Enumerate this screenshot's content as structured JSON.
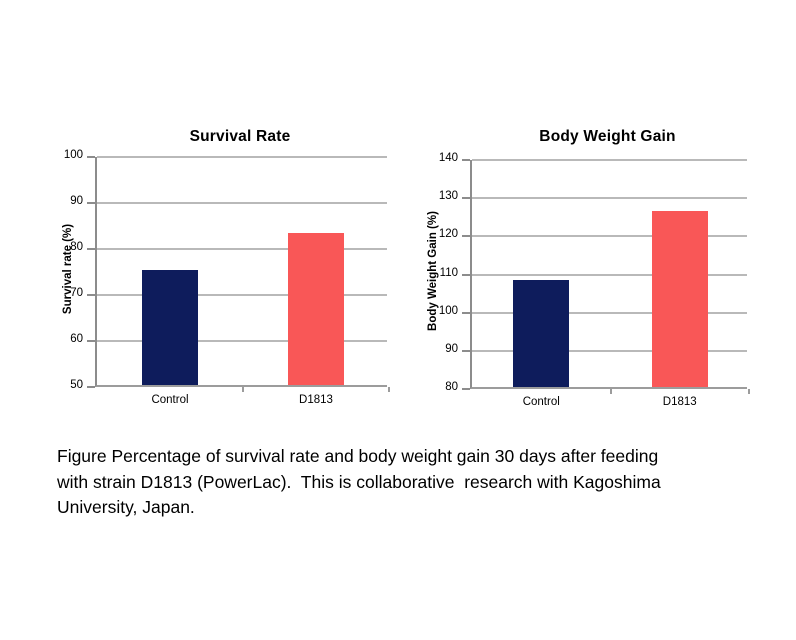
{
  "figure": {
    "caption_lines": [
      "Figure Percentage of survival rate and body weight gain 30 days after feeding",
      "with strain D1813 (PowerLac).  This is collaborative  research with Kagoshima",
      "University, Japan."
    ]
  },
  "colors": {
    "control_bar": "#0e1c5c",
    "d1813_bar": "#f95757",
    "gridline": "#b9b9b9",
    "axis": "#8c8c8c"
  },
  "chart_data": [
    {
      "type": "bar",
      "title": "Survival Rate",
      "ylabel": "Survival rate (%)",
      "xlabel": "",
      "categories": [
        "Control",
        "D1813"
      ],
      "values": [
        75,
        83
      ],
      "bar_colors": [
        "#0e1c5c",
        "#f95757"
      ],
      "ylim": [
        50,
        100
      ],
      "yticks": [
        50,
        60,
        70,
        80,
        90,
        100
      ],
      "grid": true,
      "legend_position": "none"
    },
    {
      "type": "bar",
      "title": "Body Weight Gain",
      "ylabel": "Body Weight Gain  (%)",
      "xlabel": "",
      "categories": [
        "Control",
        "D1813"
      ],
      "values": [
        108,
        126
      ],
      "bar_colors": [
        "#0e1c5c",
        "#f95757"
      ],
      "ylim": [
        80,
        140
      ],
      "yticks": [
        80,
        90,
        100,
        110,
        120,
        130,
        140
      ],
      "grid": true,
      "legend_position": "none"
    }
  ]
}
